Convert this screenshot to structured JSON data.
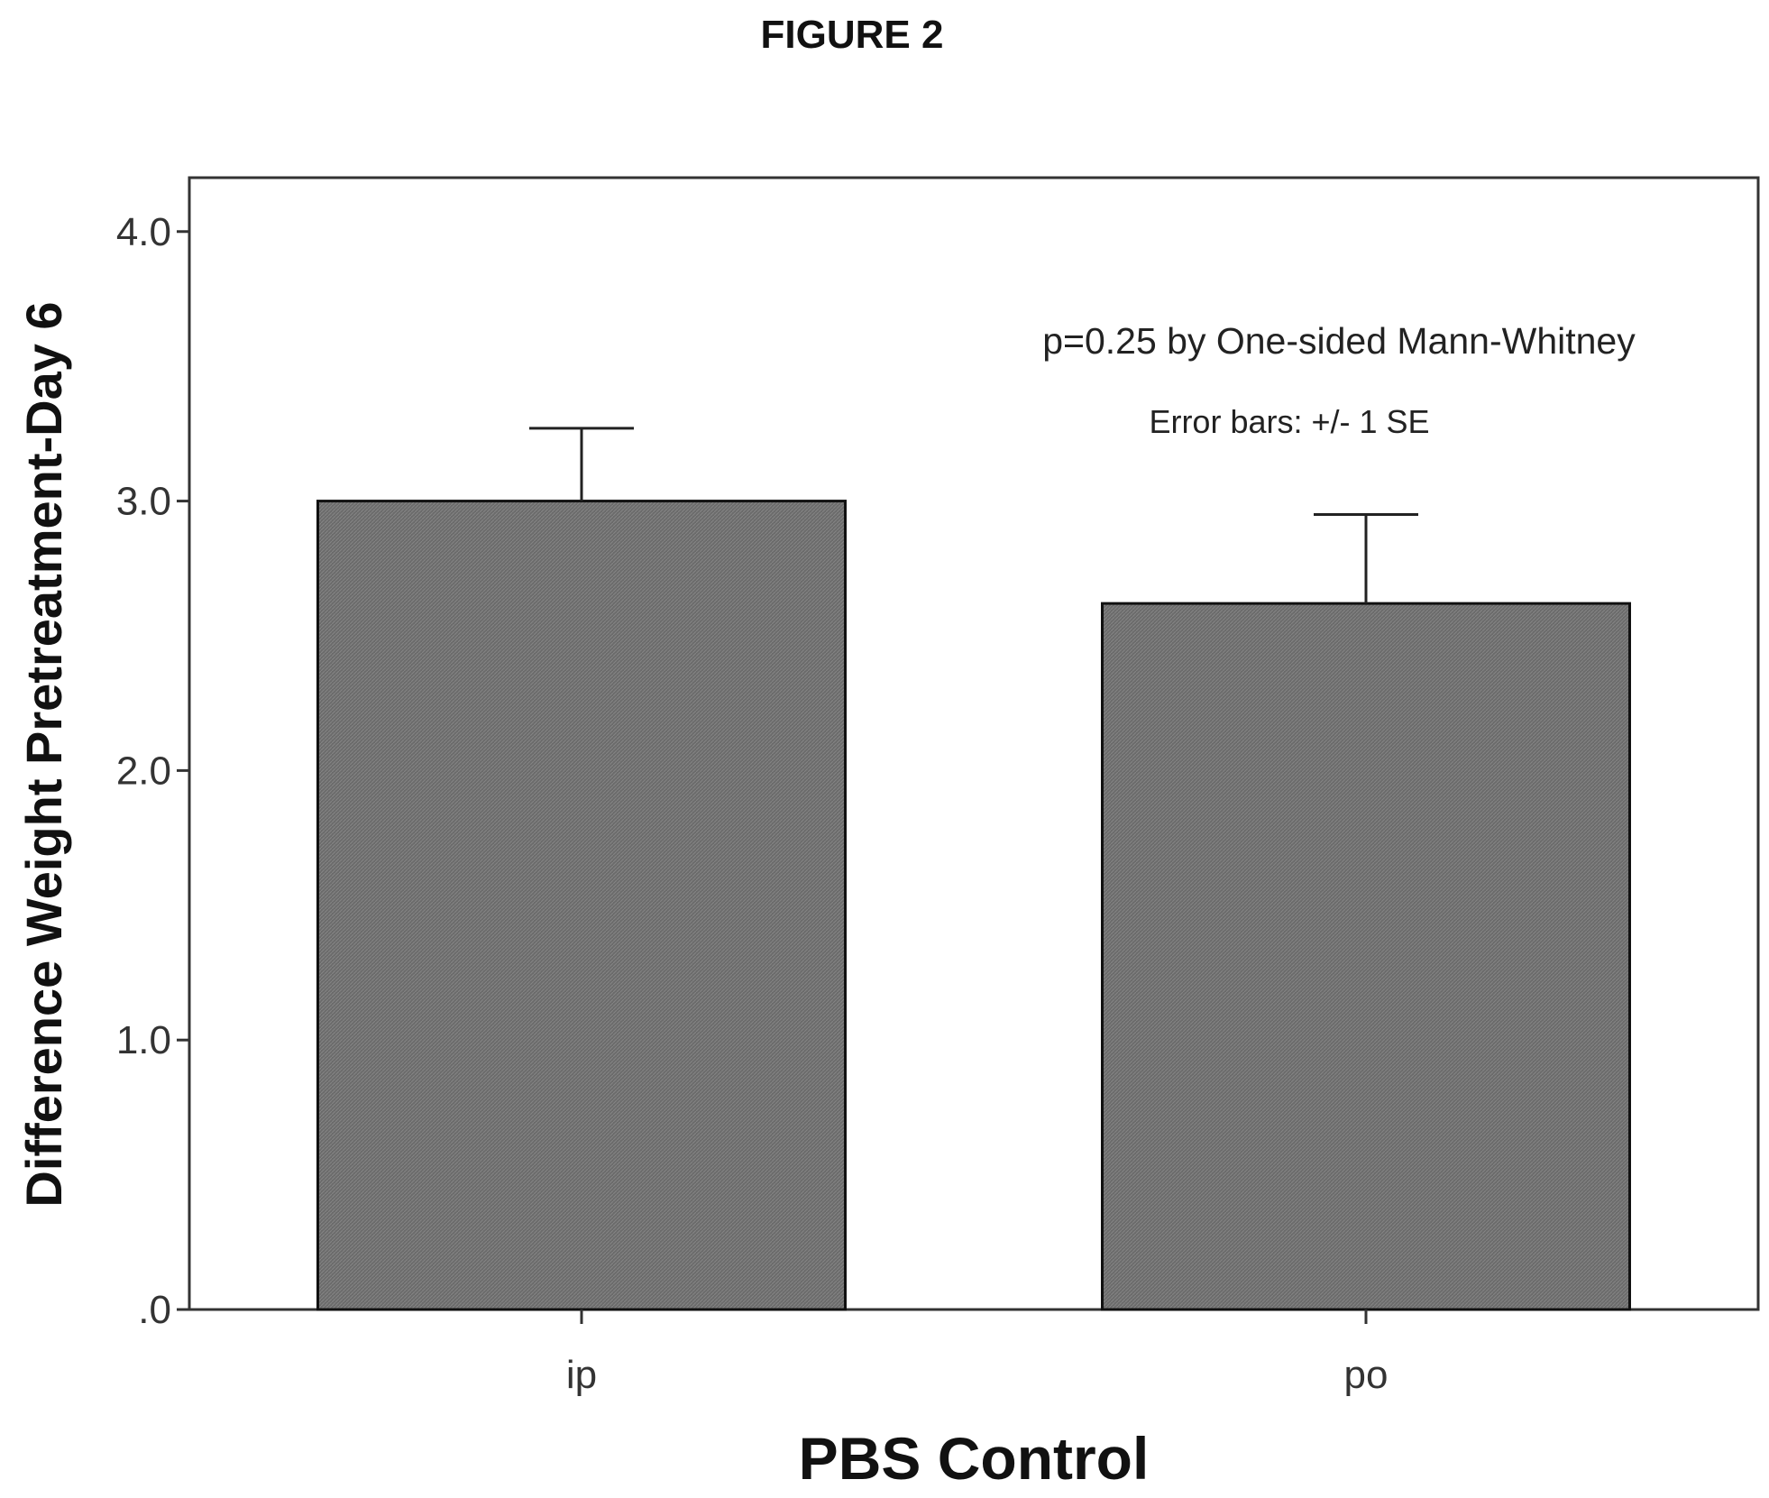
{
  "figure_label": "FIGURE 2",
  "colors": {
    "bar_fill": "#6b6b6b",
    "bar_stroke": "#111111",
    "axis": "#333333"
  },
  "chart_data": {
    "type": "bar",
    "title": "",
    "xlabel": "PBS Control",
    "ylabel": "Difference Weight Pretreatment-Day 6",
    "categories": [
      "ip",
      "po"
    ],
    "values": [
      3.0,
      2.62
    ],
    "error_bars_upper": [
      3.27,
      2.95
    ],
    "ylim": [
      0,
      4.2
    ],
    "yticks": [
      0,
      1,
      2,
      3,
      4
    ],
    "ytick_labels": [
      ".0",
      "1.0",
      "2.0",
      "3.0",
      "4.0"
    ],
    "annotations": [
      "p=0.25 by One-sided Mann-Whitney",
      "Error bars: +/- 1 SE"
    ],
    "grid": false,
    "legend": "none"
  }
}
